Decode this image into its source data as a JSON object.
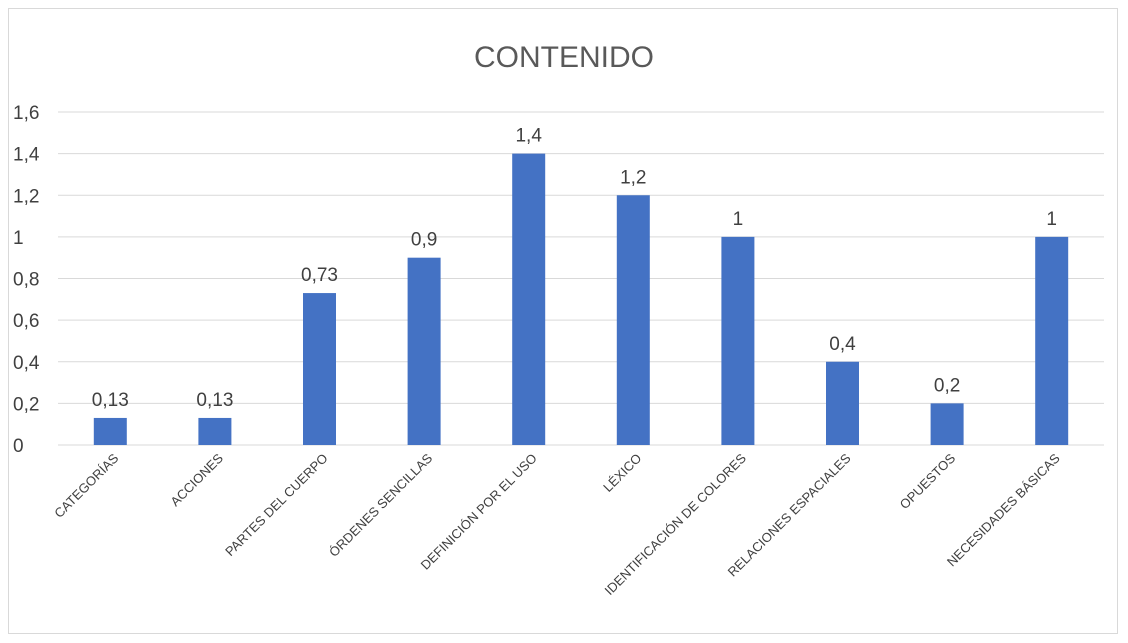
{
  "chart_data": {
    "type": "bar",
    "title": "CONTENIDO",
    "categories": [
      "CATEGORÍAS",
      "ACCIONES",
      "PARTES DEL CUERPO",
      "ÓRDENES SENCILLAS",
      "DEFINICIÓN POR EL USO",
      "LÉXICO",
      "IDENTIFICACIÓN DE COLORES",
      "RELACIONES ESPACIALES",
      "OPUESTOS",
      "NECESIDADES BÁSICAS"
    ],
    "values": [
      0.13,
      0.13,
      0.73,
      0.9,
      1.4,
      1.2,
      1,
      0.4,
      0.2,
      1
    ],
    "value_labels": [
      "0,13",
      "0,13",
      "0,73",
      "0,9",
      "1,4",
      "1,2",
      "1",
      "0,4",
      "0,2",
      "1"
    ],
    "yticks": [
      0,
      0.2,
      0.4,
      0.6,
      0.8,
      1,
      1.2,
      1.4,
      1.6
    ],
    "ytick_labels": [
      "0",
      "0,2",
      "0,4",
      "0,6",
      "0,8",
      "1",
      "1,2",
      "1,4",
      "1,6"
    ],
    "ylim": [
      0,
      1.6
    ],
    "xlabel": "",
    "ylabel": "",
    "grid": true,
    "legend": "none",
    "bar_color": "#4472C4",
    "grid_color": "#d9d9d9",
    "text_color": "#404040",
    "title_color": "#595959"
  }
}
